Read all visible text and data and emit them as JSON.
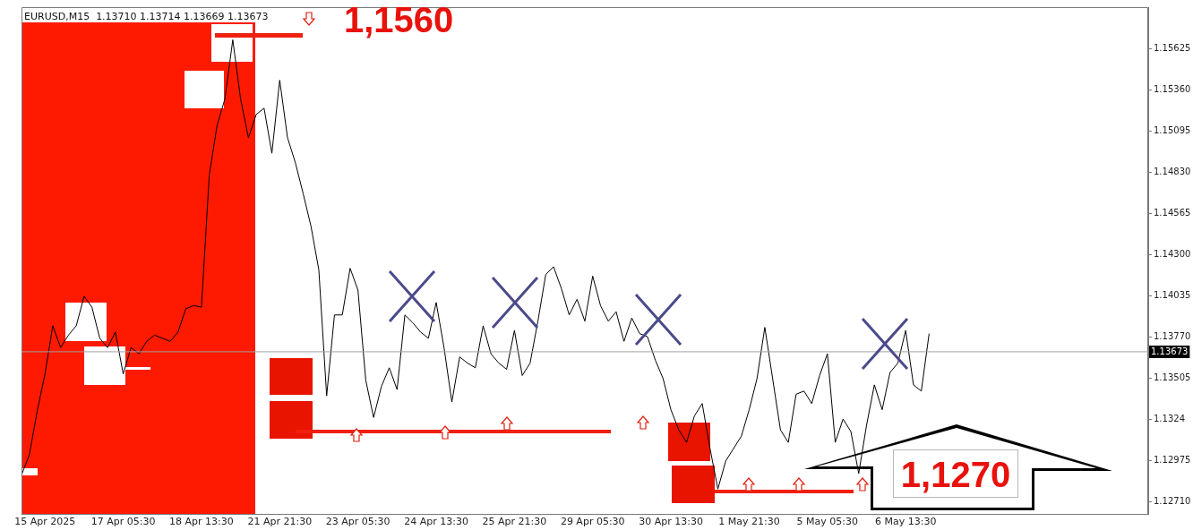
{
  "chart_data": {
    "type": "line",
    "title": "EURUSD,M15  1.13710 1.13714 1.13669 1.13673",
    "categories": [
      null,
      null,
      null,
      "15 Apr 2025",
      null,
      null,
      null,
      null,
      null,
      null,
      null,
      null,
      null,
      "17 Apr 05:30",
      null,
      null,
      null,
      null,
      null,
      null,
      null,
      null,
      null,
      "18 Apr 13:30",
      null,
      null,
      null,
      null,
      null,
      null,
      null,
      null,
      null,
      "21 Apr 21:30",
      null,
      null,
      null,
      null,
      null,
      null,
      null,
      null,
      null,
      "23 Apr 05:30",
      null,
      null,
      null,
      null,
      null,
      null,
      null,
      null,
      null,
      "24 Apr 13:30",
      null,
      null,
      null,
      null,
      null,
      null,
      null,
      null,
      null,
      "25 Apr 21:30",
      null,
      null,
      null,
      null,
      null,
      null,
      null,
      null,
      null,
      "29 Apr 05:30",
      null,
      null,
      null,
      null,
      null,
      null,
      null,
      null,
      null,
      "30 Apr 13:30",
      null,
      null,
      null,
      null,
      null,
      null,
      null,
      null,
      null,
      "1 May 21:30",
      null,
      null,
      null,
      null,
      null,
      null,
      null,
      null,
      null,
      "5 May 05:30",
      null,
      null,
      null,
      null,
      null,
      null,
      null,
      null,
      null,
      "6 May 13:30",
      null,
      null,
      null,
      null,
      null,
      null,
      null,
      null,
      null,
      null,
      null,
      null,
      null,
      null,
      null,
      null,
      null,
      null,
      null,
      null,
      null,
      null,
      null,
      null,
      null,
      null,
      null,
      null,
      null,
      null,
      null
    ],
    "series": [
      {
        "color": "#000000",
        "values": [
          1.1288,
          1.1301,
          1.1329,
          1.1353,
          1.1384,
          1.137,
          1.1378,
          1.1384,
          1.1403,
          1.1396,
          1.1376,
          1.137,
          1.138,
          1.1353,
          1.137,
          1.1366,
          1.1374,
          1.1378,
          1.1376,
          1.1374,
          1.138,
          1.1395,
          1.1397,
          1.1396,
          1.1481,
          1.1513,
          1.153,
          1.1568,
          1.153,
          1.1505,
          1.152,
          1.1524,
          1.1495,
          1.1542,
          1.1505,
          1.1489,
          1.1469,
          1.1448,
          1.142,
          1.1339,
          1.1391,
          1.1391,
          1.1421,
          1.1407,
          1.1349,
          1.1325,
          1.1345,
          1.1357,
          1.1343,
          1.1391,
          1.1386,
          1.138,
          1.1376,
          1.1399,
          1.137,
          1.1335,
          1.1364,
          1.136,
          1.1357,
          1.1384,
          1.1366,
          1.136,
          1.1356,
          1.1381,
          1.1352,
          1.136,
          1.1387,
          1.1417,
          1.1422,
          1.1408,
          1.1391,
          1.1401,
          1.1387,
          1.1416,
          1.1397,
          1.1387,
          1.1393,
          1.1374,
          1.1389,
          1.1379,
          1.1377,
          1.1362,
          1.135,
          1.133,
          1.1317,
          1.1309,
          1.1326,
          1.1334,
          1.1305,
          1.1279,
          1.1297,
          1.1305,
          1.1313,
          1.133,
          1.135,
          1.1383,
          1.135,
          1.1317,
          1.1309,
          1.134,
          1.1342,
          1.1334,
          1.1352,
          1.1366,
          1.1309,
          1.1324,
          1.1316,
          1.1289,
          1.132,
          1.1346,
          1.133,
          1.1354,
          1.136,
          1.1381,
          1.1346,
          1.1342,
          1.1379,
          null,
          null,
          null,
          null,
          null,
          null,
          null,
          null,
          null,
          null,
          null,
          null,
          null,
          null,
          null,
          null,
          null,
          null,
          null,
          null,
          null,
          null,
          null,
          null,
          null,
          null,
          null,
          null
        ]
      }
    ],
    "ylim": [
      1.1263,
      1.1589
    ],
    "yticks": [
      {
        "value": 1.1271,
        "label": "1.12710"
      },
      1.12975,
      1.1324,
      1.13505,
      {
        "value": 1.1377,
        "label": "1.13770"
      },
      1.14035,
      {
        "value": 1.143,
        "label": "1.14300"
      },
      1.14565,
      {
        "value": 1.1483,
        "label": "1.14830"
      },
      1.15095,
      {
        "value": 1.1536,
        "label": "1.15360"
      },
      1.15625
    ],
    "ref_lines": [
      {
        "axis": "y",
        "value": 1.13673,
        "label": "1.13673",
        "color": "#a0a0a0"
      }
    ],
    "annotations": [
      "1,1560",
      "1,1270"
    ]
  }
}
